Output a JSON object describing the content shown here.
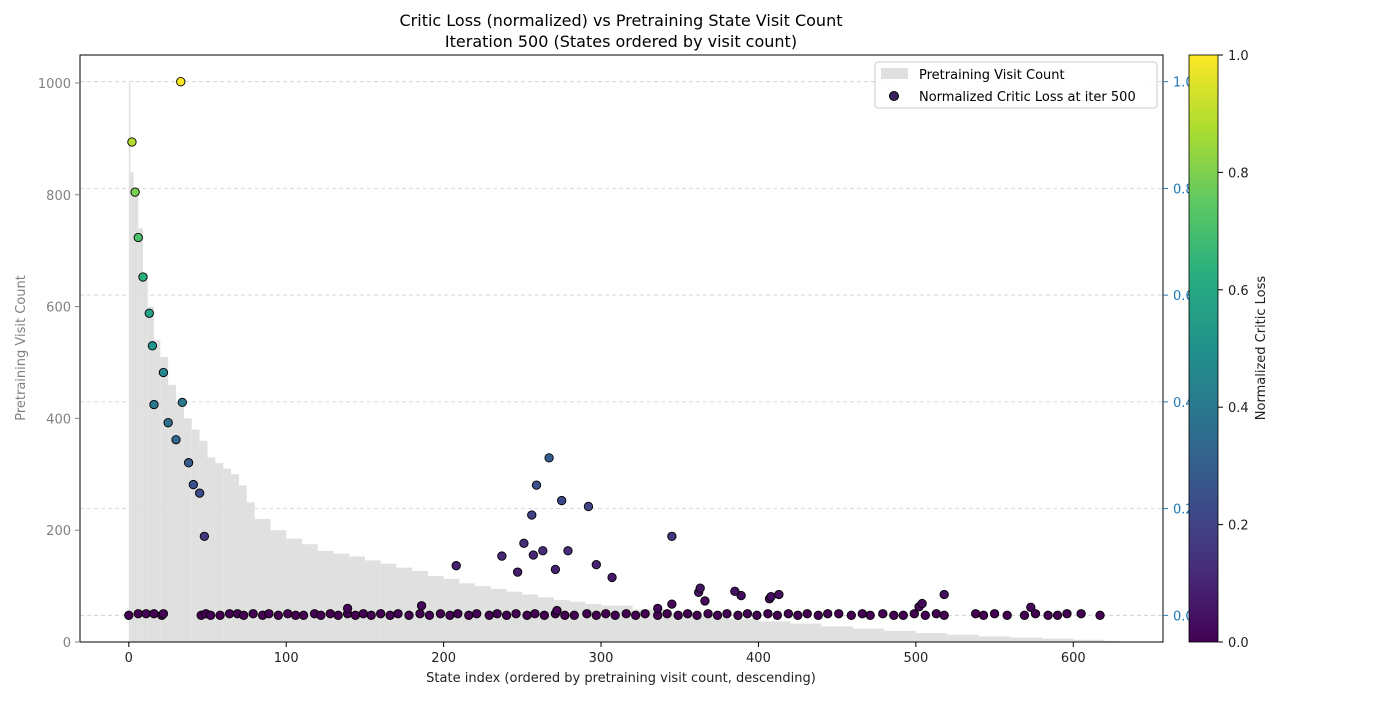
{
  "chart_data": {
    "type": "scatter",
    "title": "Critic Loss (normalized) vs Pretraining State Visit Count",
    "subtitle": "Iteration 500 (States ordered by visit count)",
    "xlabel": "State index (ordered by pretraining visit count, descending)",
    "ylabel_left": "Pretraining Visit Count",
    "ylabel_colorbar": "Normalized Critic Loss",
    "xlim": [
      -31,
      657
    ],
    "ylim_left": [
      0,
      1050
    ],
    "ylim_right": [
      -0.05,
      1.05
    ],
    "x_ticks": [
      "0",
      "100",
      "200",
      "300",
      "400",
      "500",
      "600"
    ],
    "y_ticks_left": [
      "0",
      "200",
      "400",
      "600",
      "800",
      "1000"
    ],
    "y_ticks_right": [
      "0.0",
      "0.2",
      "0.4",
      "0.6",
      "0.8",
      "1.0"
    ],
    "colorbar_ticks": [
      "0.0",
      "0.2",
      "0.4",
      "0.6",
      "0.8",
      "1.0"
    ],
    "colorbar_range": [
      0,
      1
    ],
    "colormap": "viridis",
    "grid": "horizontal dashed, right axis",
    "legend_position": "top-right",
    "legend": [
      "Pretraining Visit Count",
      "Normalized Critic Loss at iter 500"
    ],
    "series": [
      {
        "name": "Pretraining Visit Count",
        "type": "bar",
        "color": "#e0e0e0",
        "profile_x": [
          0,
          1,
          3,
          6,
          9,
          12,
          16,
          20,
          25,
          30,
          35,
          40,
          45,
          50,
          55,
          60,
          65,
          70,
          75,
          80,
          90,
          100,
          110,
          120,
          130,
          140,
          150,
          160,
          170,
          180,
          190,
          200,
          210,
          220,
          230,
          240,
          250,
          260,
          270,
          280,
          290,
          300,
          320,
          340,
          360,
          380,
          400,
          420,
          440,
          460,
          480,
          500,
          520,
          540,
          560,
          580,
          600,
          620,
          630
        ],
        "profile_y": [
          1000,
          840,
          800,
          740,
          660,
          600,
          540,
          510,
          460,
          430,
          400,
          380,
          360,
          330,
          320,
          310,
          300,
          280,
          250,
          220,
          200,
          185,
          175,
          163,
          158,
          153,
          146,
          140,
          133,
          127,
          118,
          113,
          105,
          100,
          95,
          90,
          85,
          80,
          75,
          72,
          68,
          65,
          58,
          52,
          47,
          42,
          37,
          33,
          28,
          24,
          20,
          16,
          13,
          10,
          8,
          6,
          4,
          2,
          1
        ]
      },
      {
        "name": "Normalized Critic Loss at iter 500",
        "type": "scatter",
        "x": [
          0,
          6,
          11,
          16,
          21,
          22,
          46,
          49,
          52,
          58,
          64,
          69,
          73,
          79,
          85,
          89,
          95,
          101,
          106,
          111,
          118,
          122,
          128,
          133,
          139,
          144,
          149,
          154,
          160,
          166,
          171,
          178,
          185,
          191,
          198,
          204,
          209,
          216,
          221,
          229,
          234,
          240,
          246,
          253,
          258,
          264,
          271,
          277,
          283,
          291,
          297,
          303,
          309,
          316,
          322,
          328,
          336,
          342,
          349,
          355,
          361,
          368,
          374,
          380,
          387,
          393,
          399,
          406,
          412,
          419,
          425,
          431,
          438,
          444,
          451,
          459,
          466,
          471,
          479,
          486,
          492,
          499,
          506,
          513,
          518,
          538,
          543,
          550,
          558,
          569,
          576,
          584,
          590,
          596,
          605,
          617,
          139,
          186,
          272,
          336,
          345,
          362,
          366,
          389,
          407,
          408,
          413,
          502,
          504,
          518,
          573,
          2,
          4,
          6,
          9,
          13,
          15,
          22,
          16,
          25,
          30,
          34,
          38,
          41,
          45,
          48,
          33,
          208,
          237,
          247,
          251,
          256,
          257,
          259,
          263,
          267,
          271,
          275,
          279,
          292,
          297,
          307,
          345,
          363,
          385
        ],
        "y": [
          0.0,
          0.003,
          0.003,
          0.003,
          0.0,
          0.003,
          0.0,
          0.003,
          0.0,
          0.0,
          0.003,
          0.003,
          0.0,
          0.003,
          0.0,
          0.003,
          0.0,
          0.003,
          0.0,
          0.0,
          0.003,
          0.0,
          0.003,
          0.0,
          0.003,
          0.0,
          0.003,
          0.0,
          0.003,
          0.0,
          0.003,
          0.0,
          0.003,
          0.0,
          0.003,
          0.0,
          0.003,
          0.0,
          0.003,
          0.0,
          0.003,
          0.0,
          0.003,
          0.0,
          0.003,
          0.0,
          0.003,
          0.0,
          0.0,
          0.003,
          0.0,
          0.003,
          0.0,
          0.003,
          0.0,
          0.003,
          0.0,
          0.003,
          0.0,
          0.003,
          0.0,
          0.003,
          0.0,
          0.003,
          0.0,
          0.003,
          0.0,
          0.003,
          0.0,
          0.003,
          0.0,
          0.003,
          0.0,
          0.003,
          0.003,
          0.0,
          0.003,
          0.0,
          0.003,
          0.0,
          0.0,
          0.003,
          0.0,
          0.003,
          0.0,
          0.003,
          0.0,
          0.003,
          0.0,
          0.0,
          0.003,
          0.0,
          0.0,
          0.003,
          0.003,
          0.0,
          0.013,
          0.018,
          0.009,
          0.013,
          0.021,
          0.043,
          0.027,
          0.037,
          0.031,
          0.035,
          0.039,
          0.016,
          0.022,
          0.039,
          0.015,
          0.887,
          0.793,
          0.708,
          0.634,
          0.566,
          0.505,
          0.455,
          0.395,
          0.361,
          0.329,
          0.399,
          0.286,
          0.245,
          0.229,
          0.148,
          1.0,
          0.093,
          0.111,
          0.081,
          0.135,
          0.188,
          0.113,
          0.244,
          0.121,
          0.295,
          0.086,
          0.215,
          0.121,
          0.204,
          0.095,
          0.071,
          0.148,
          0.051,
          0.045
        ],
        "color_value": [
          0.0,
          0.0,
          0.0,
          0.0,
          0.0,
          0.0,
          0.0,
          0.0,
          0.0,
          0.0,
          0.0,
          0.0,
          0.0,
          0.0,
          0.0,
          0.0,
          0.0,
          0.0,
          0.0,
          0.0,
          0.0,
          0.0,
          0.0,
          0.0,
          0.0,
          0.0,
          0.0,
          0.0,
          0.0,
          0.0,
          0.0,
          0.0,
          0.0,
          0.0,
          0.0,
          0.0,
          0.0,
          0.0,
          0.0,
          0.0,
          0.0,
          0.0,
          0.0,
          0.0,
          0.0,
          0.0,
          0.0,
          0.0,
          0.0,
          0.0,
          0.0,
          0.0,
          0.0,
          0.0,
          0.0,
          0.0,
          0.0,
          0.0,
          0.0,
          0.0,
          0.0,
          0.0,
          0.0,
          0.0,
          0.0,
          0.0,
          0.0,
          0.0,
          0.0,
          0.0,
          0.0,
          0.0,
          0.0,
          0.0,
          0.0,
          0.0,
          0.0,
          0.0,
          0.0,
          0.0,
          0.0,
          0.0,
          0.0,
          0.0,
          0.0,
          0.0,
          0.0,
          0.0,
          0.0,
          0.0,
          0.0,
          0.0,
          0.0,
          0.0,
          0.0,
          0.0,
          0.013,
          0.018,
          0.009,
          0.013,
          0.021,
          0.043,
          0.027,
          0.037,
          0.031,
          0.035,
          0.039,
          0.016,
          0.022,
          0.039,
          0.015,
          0.887,
          0.793,
          0.708,
          0.634,
          0.566,
          0.505,
          0.455,
          0.395,
          0.361,
          0.329,
          0.399,
          0.286,
          0.245,
          0.229,
          0.148,
          1.0,
          0.093,
          0.111,
          0.081,
          0.135,
          0.188,
          0.113,
          0.244,
          0.121,
          0.295,
          0.086,
          0.215,
          0.121,
          0.204,
          0.095,
          0.071,
          0.148,
          0.051,
          0.045
        ]
      }
    ]
  }
}
